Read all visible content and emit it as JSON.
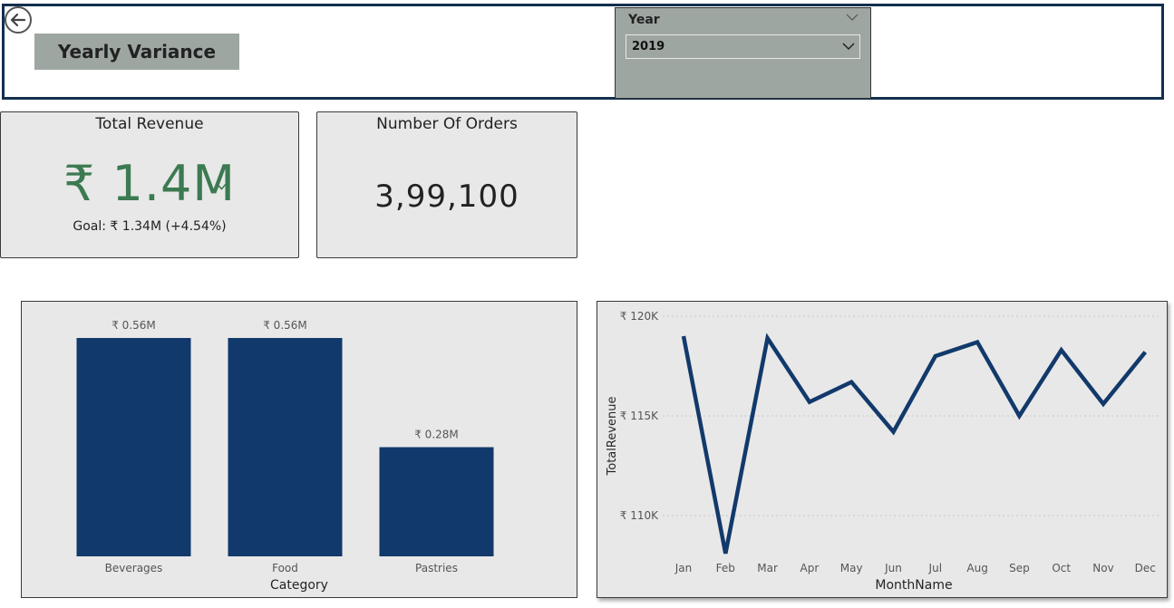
{
  "header": {
    "title": "Yearly Variance",
    "back_icon": "back-arrow-icon"
  },
  "year_slicer": {
    "label": "Year",
    "selected": "2019",
    "collapse_icon": "chevron-down-icon",
    "dropdown_icon": "chevron-down-icon"
  },
  "revenue_card": {
    "title": "Total Revenue",
    "value": "₹ 1.4M",
    "status_icon": "checkmark-icon",
    "goal": "Goal: ₹ 1.34M (+4.54%)",
    "value_color": "#3c7a51"
  },
  "orders_card": {
    "title": "Number Of Orders",
    "value": "3,99,100"
  },
  "colors": {
    "bar": "#12396b",
    "line": "#12396b",
    "frame": "#12304f",
    "panel": "#e8e8e8",
    "slicer": "#9ea6a2"
  },
  "chart_data": [
    {
      "type": "bar",
      "categories": [
        "Beverages",
        "Food",
        "Pastries"
      ],
      "values": [
        0.56,
        0.56,
        0.28
      ],
      "data_labels": [
        "₹ 0.56M",
        "₹ 0.56M",
        "₹ 0.28M"
      ],
      "unit": "M",
      "xlabel": "Category",
      "ylabel": "",
      "ylim": [
        0,
        0.56
      ],
      "grid": false
    },
    {
      "type": "line",
      "x": [
        "Jan",
        "Feb",
        "Mar",
        "Apr",
        "May",
        "Jun",
        "Jul",
        "Aug",
        "Sep",
        "Oct",
        "Nov",
        "Dec"
      ],
      "values": [
        119000,
        108100,
        118900,
        115700,
        116700,
        114200,
        118000,
        118700,
        115000,
        118300,
        115600,
        118200
      ],
      "xlabel": "MonthName",
      "ylabel": "TotalRevenue",
      "yticks": [
        110000,
        115000,
        120000
      ],
      "ytick_labels": [
        "₹ 110K",
        "₹ 115K",
        "₹ 120K"
      ],
      "ylim": [
        108000,
        120000
      ],
      "grid": true
    }
  ]
}
